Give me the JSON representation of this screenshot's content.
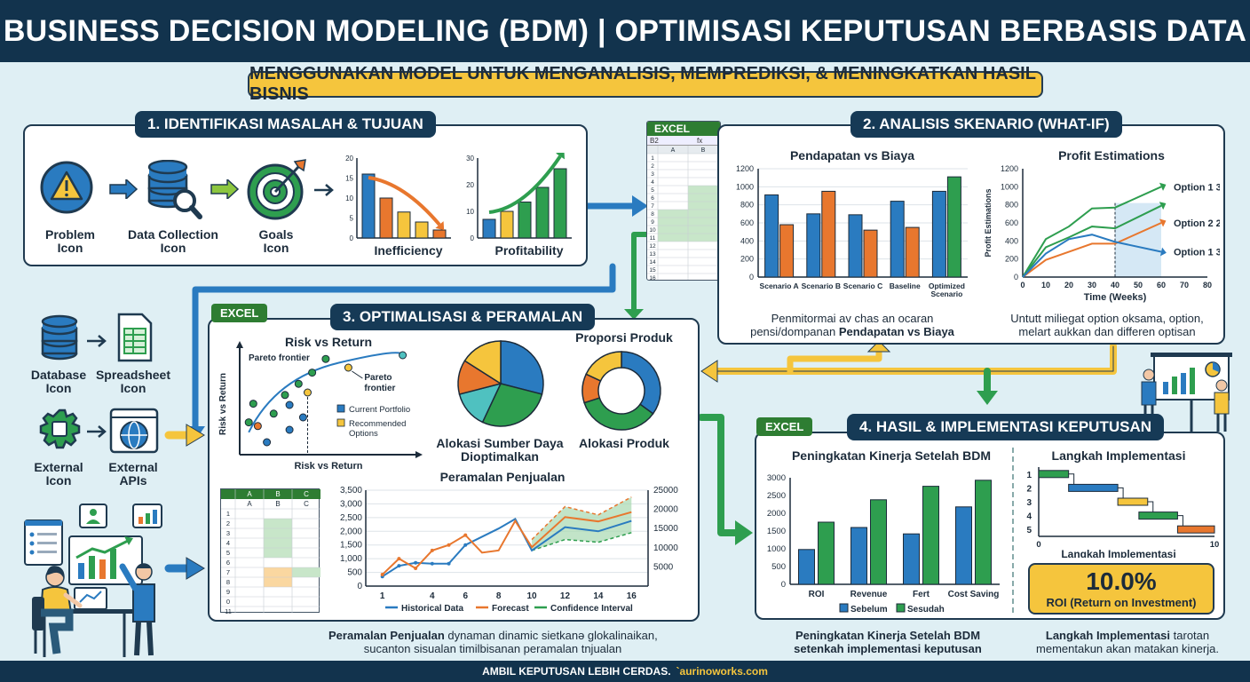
{
  "header": {
    "title": "BUSINESS DECISION MODELING (BDM) | OPTIMISASI KEPUTUSAN BERBASIS DATA"
  },
  "subtitle": "MENGGUNAKAN MODEL UNTUK MENGANALISIS, MEMPREDIKSI, & MENINGKATKAN HASIL BISNIS",
  "section1": {
    "title": "1. IDENTIFIKASI MASALAH & TUJUAN",
    "icons": [
      {
        "label": "Problem Icon",
        "icon": "warning-icon"
      },
      {
        "label": "Data Collection Icon",
        "icon": "database-search-icon"
      },
      {
        "label": "Goals Icon",
        "icon": "target-icon"
      }
    ],
    "inefficiency": {
      "label": "Inefficiency"
    },
    "profitability": {
      "label": "Profitability"
    }
  },
  "section2": {
    "title": "2. ANALISIS SKENARIO (WHAT-IF)",
    "caption1": "Penmitormai av chas an ocaran",
    "caption2a": "pensi/dompanan ",
    "caption2b": "Pendapatan vs Biaya",
    "caption3": "Untutt miliegat option oksama, option,",
    "caption4": "melart aukkan dan differen optisan"
  },
  "section3": {
    "title": "3. OPTIMALISASI & PERAMALAN",
    "alloc_title": "Alokasi Sumber Daya Dioptimalkan",
    "prop_title": "Proporsi Produk",
    "prop_label": "Alokasi Produk",
    "caption_bold": "Peramalan Penjualan",
    "caption_rest": " dynaman dinamic sietkanə glokalinaikan,",
    "caption2": "sucanton sisualan timilbisanan peramalan tnjualan"
  },
  "section4": {
    "title": "4. HASIL & IMPLEMENTASI KEPUTUSAN",
    "roi_value": "10.0%",
    "roi_label": "ROI (Return on Investment)",
    "caption_left1": "Peningkatan Kinerja Setelah BDM",
    "caption_left2": "setenkah implementasi keputusan",
    "caption_right_bold": "Langkah Implementasi",
    "caption_right_rest": " tarotan",
    "caption_right2": "mementakun akan matakan kinerja."
  },
  "excel_label": "EXCEL",
  "side": {
    "items": [
      {
        "label": "Database Icon",
        "icon": "database-icon"
      },
      {
        "label": "Spreadsheet Icon",
        "icon": "spreadsheet-icon"
      },
      {
        "label": "External Icon",
        "icon": "puzzle-gear-icon"
      },
      {
        "label": "External APIs",
        "icon": "globe-icon"
      }
    ]
  },
  "sheet_top": {
    "cell": "B2",
    "fx": "fx",
    "cols": [
      "A",
      "B"
    ],
    "rows": [
      "1",
      "2",
      "3",
      "4",
      "5",
      "6",
      "7",
      "8",
      "9",
      "10",
      "11",
      "12",
      "13",
      "14",
      "15",
      "16"
    ]
  },
  "sheet_mid": {
    "cols": [
      "A",
      "B",
      "C"
    ],
    "rows": [
      "1",
      "2",
      "3",
      "4",
      "5",
      "6",
      "7",
      "8",
      "9",
      "0",
      "11"
    ]
  },
  "footer": {
    "text": "AMBIL KEPUTUSAN LEBIH CERDAS.",
    "url": "`aurinoworks.com"
  },
  "colors": {
    "navy": "#12334d",
    "yellow": "#f5c53d",
    "blue": "#2a7bc0",
    "orange": "#e8772e",
    "green": "#2e9e4f",
    "teal": "#4fc1c0"
  },
  "chart_data": [
    {
      "id": "inefficiency",
      "type": "bar",
      "title": "",
      "xlabel": "Inefficiency",
      "ylim": [
        0,
        20
      ],
      "yticks": [
        0,
        5,
        10,
        15,
        20
      ],
      "values": [
        16,
        10,
        6.5,
        4,
        2
      ],
      "colors": [
        "#2a7bc0",
        "#e8772e",
        "#f5c53d",
        "#f5c53d",
        "#e8772e"
      ]
    },
    {
      "id": "profitability",
      "type": "bar",
      "title": "",
      "xlabel": "Profitability",
      "ylim": [
        0,
        30
      ],
      "yticks": [
        0,
        10,
        20,
        30
      ],
      "values": [
        7,
        10,
        13.5,
        19,
        26
      ],
      "colors": [
        "#2a7bc0",
        "#f5c53d",
        "#2e9e4f",
        "#2e9e4f",
        "#2e9e4f"
      ]
    },
    {
      "id": "revenue_vs_cost",
      "type": "bar",
      "title": "Pendapatan vs Biaya",
      "ylim": [
        0,
        1200
      ],
      "yticks": [
        0,
        200,
        400,
        600,
        800,
        1000,
        1200
      ],
      "categories": [
        "Scenario A",
        "Scenario B",
        "Scenario C",
        "Baseline",
        "Optimized Scenario"
      ],
      "bars": [
        [
          {
            "v": 910,
            "c": "#2a7bc0"
          },
          {
            "v": 580,
            "c": "#e8772e"
          }
        ],
        [
          {
            "v": 700,
            "c": "#2a7bc0"
          },
          {
            "v": 950,
            "c": "#e8772e"
          }
        ],
        [
          {
            "v": 690,
            "c": "#2a7bc0"
          },
          {
            "v": 520,
            "c": "#e8772e"
          }
        ],
        [
          {
            "v": 840,
            "c": "#2a7bc0"
          },
          {
            "v": 550,
            "c": "#e8772e"
          }
        ],
        [
          {
            "v": 950,
            "c": "#2a7bc0"
          },
          {
            "v": 1110,
            "c": "#2e9e4f"
          }
        ]
      ]
    },
    {
      "id": "profit_estimations",
      "type": "line",
      "title": "Profit Estimations",
      "ylabel": "Profit Estimations",
      "xlabel": "Time (Weeks)",
      "xlim": [
        0,
        80
      ],
      "ylim": [
        0,
        1200
      ],
      "xticks": [
        0,
        10,
        20,
        30,
        40,
        50,
        60,
        70,
        80
      ],
      "yticks": [
        0,
        200,
        400,
        600,
        800,
        1000,
        1200
      ],
      "series": [
        {
          "name": "Option 1 3",
          "color": "#2e9e4f",
          "x": [
            0,
            10,
            20,
            30,
            40,
            60
          ],
          "y": [
            0,
            420,
            560,
            760,
            770,
            1000
          ]
        },
        {
          "name": "Option 2 2",
          "color": "#2e9e4f",
          "x": [
            0,
            10,
            20,
            30,
            40,
            60
          ],
          "y": [
            0,
            330,
            440,
            560,
            540,
            790
          ]
        },
        {
          "name": "Option 2 2 (orange)",
          "color": "#e8772e",
          "x": [
            0,
            10,
            20,
            30,
            40,
            60
          ],
          "y": [
            0,
            190,
            280,
            370,
            370,
            600
          ]
        },
        {
          "name": "Option 1 3",
          "color": "#2a7bc0",
          "x": [
            0,
            10,
            20,
            30,
            40,
            60
          ],
          "y": [
            0,
            260,
            420,
            470,
            390,
            280
          ]
        }
      ]
    },
    {
      "id": "risk_return",
      "type": "scatter",
      "title": "Risk vs Return",
      "xlabel": "Risk vs Return",
      "ylabel": "Risk vs Return",
      "frontier_label": "Pareto frontier",
      "legend": [
        "Current Portfolio",
        "Recommended Options"
      ],
      "points": [
        {
          "x": 2,
          "y": 26,
          "c": "#2e9e4f"
        },
        {
          "x": 3,
          "y": 41,
          "c": "#2e9e4f"
        },
        {
          "x": 7.5,
          "y": 33,
          "c": "#2e9e4f"
        },
        {
          "x": 10,
          "y": 48,
          "c": "#2e9e4f"
        },
        {
          "x": 13,
          "y": 57,
          "c": "#2e9e4f"
        },
        {
          "x": 16,
          "y": 66,
          "c": "#2e9e4f"
        },
        {
          "x": 19,
          "y": 77,
          "c": "#2e9e4f"
        },
        {
          "x": 6,
          "y": 10,
          "c": "#2a7bc0"
        },
        {
          "x": 11,
          "y": 20,
          "c": "#2a7bc0"
        },
        {
          "x": 14,
          "y": 30,
          "c": "#2a7bc0"
        },
        {
          "x": 11,
          "y": 40,
          "c": "#2a7bc0"
        },
        {
          "x": 4,
          "y": 23,
          "c": "#e8772e"
        },
        {
          "x": 15,
          "y": 50,
          "c": "#f5c53d"
        },
        {
          "x": 24,
          "y": 70,
          "c": "#f5c53d"
        },
        {
          "x": 36,
          "y": 80,
          "c": "#4fc1c0"
        }
      ]
    },
    {
      "id": "resource_allocation",
      "type": "pie",
      "title": "Alokasi Sumber Daya Dioptimalkan",
      "slices": [
        {
          "v": 29,
          "c": "#2a7bc0"
        },
        {
          "v": 28,
          "c": "#2e9e4f"
        },
        {
          "v": 14,
          "c": "#4fc1c0"
        },
        {
          "v": 13,
          "c": "#e8772e"
        },
        {
          "v": 16,
          "c": "#f5c53d"
        }
      ]
    },
    {
      "id": "product_allocation",
      "type": "pie",
      "title": "Proporsi Produk",
      "donut": true,
      "slices": [
        {
          "v": 35,
          "c": "#2a7bc0"
        },
        {
          "v": 35,
          "c": "#2e9e4f"
        },
        {
          "v": 12,
          "c": "#e8772e"
        },
        {
          "v": 18,
          "c": "#f5c53d"
        }
      ]
    },
    {
      "id": "sales_forecast",
      "type": "line",
      "title": "Peramalan Penjualan",
      "xlim": [
        0,
        17
      ],
      "ylim": [
        0,
        3500
      ],
      "yticks": [
        0,
        500,
        1000,
        1500,
        2000,
        2500,
        3000,
        3500
      ],
      "xticks": [
        1,
        4,
        6,
        8,
        10,
        12,
        14,
        16
      ],
      "y2ticks": [
        "5000",
        "10000",
        "15000",
        "20000",
        "25000"
      ],
      "series": [
        {
          "name": "Historical Data",
          "color": "#2a7bc0",
          "x": [
            1,
            2,
            3,
            4,
            5,
            6,
            7,
            8,
            9,
            10,
            12,
            14,
            16
          ],
          "y": [
            350,
            740,
            850,
            820,
            820,
            1500,
            1800,
            2100,
            2450,
            1300,
            2150,
            2000,
            2380
          ]
        },
        {
          "name": "Forecast",
          "color": "#e8772e",
          "x": [
            1,
            2,
            3,
            4,
            5,
            6,
            7,
            8,
            9,
            10,
            12,
            14,
            16
          ],
          "y": [
            420,
            1000,
            650,
            1300,
            1500,
            1860,
            1220,
            1300,
            2380,
            1420,
            2520,
            2360,
            2700
          ]
        }
      ],
      "band_name": "Confidence Interval",
      "band": {
        "x": [
          10,
          12,
          14,
          16
        ],
        "lo": [
          1300,
          1700,
          1600,
          1950
        ],
        "hi": [
          1700,
          2900,
          2600,
          3250
        ]
      }
    },
    {
      "id": "performance",
      "type": "bar",
      "title": "Peningkatan Kinerja Setelah BDM",
      "ylim": [
        0,
        3000
      ],
      "yticks": [
        0,
        500,
        1000,
        1500,
        2000,
        2500,
        3000
      ],
      "categories": [
        "ROI",
        "Revenue",
        "Fert",
        "Cost Saving"
      ],
      "series": [
        {
          "name": "Sebelum",
          "color": "#2a7bc0",
          "values": [
            980,
            1600,
            1420,
            2180
          ]
        },
        {
          "name": "Sesudah",
          "color": "#2e9e4f",
          "values": [
            1750,
            2380,
            2760,
            2930
          ]
        }
      ]
    },
    {
      "id": "implementation_steps",
      "type": "gantt",
      "title": "Langkah Implementasi",
      "xlabel": "Langkah Implementasi",
      "xlim": [
        0,
        10
      ],
      "xticks": [
        0,
        10
      ],
      "rows": [
        "1",
        "2",
        "3",
        "4",
        "5"
      ],
      "tasks": [
        {
          "row": 1,
          "start": 0,
          "end": 1.7,
          "c": "#2e9e4f"
        },
        {
          "row": 2,
          "start": 1.7,
          "end": 4.5,
          "c": "#2a7bc0"
        },
        {
          "row": 3,
          "start": 4.5,
          "end": 6.2,
          "c": "#f5c53d"
        },
        {
          "row": 4,
          "start": 5.7,
          "end": 7.9,
          "c": "#2e9e4f"
        },
        {
          "row": 5,
          "start": 7.9,
          "end": 10,
          "c": "#e8772e"
        }
      ]
    }
  ]
}
